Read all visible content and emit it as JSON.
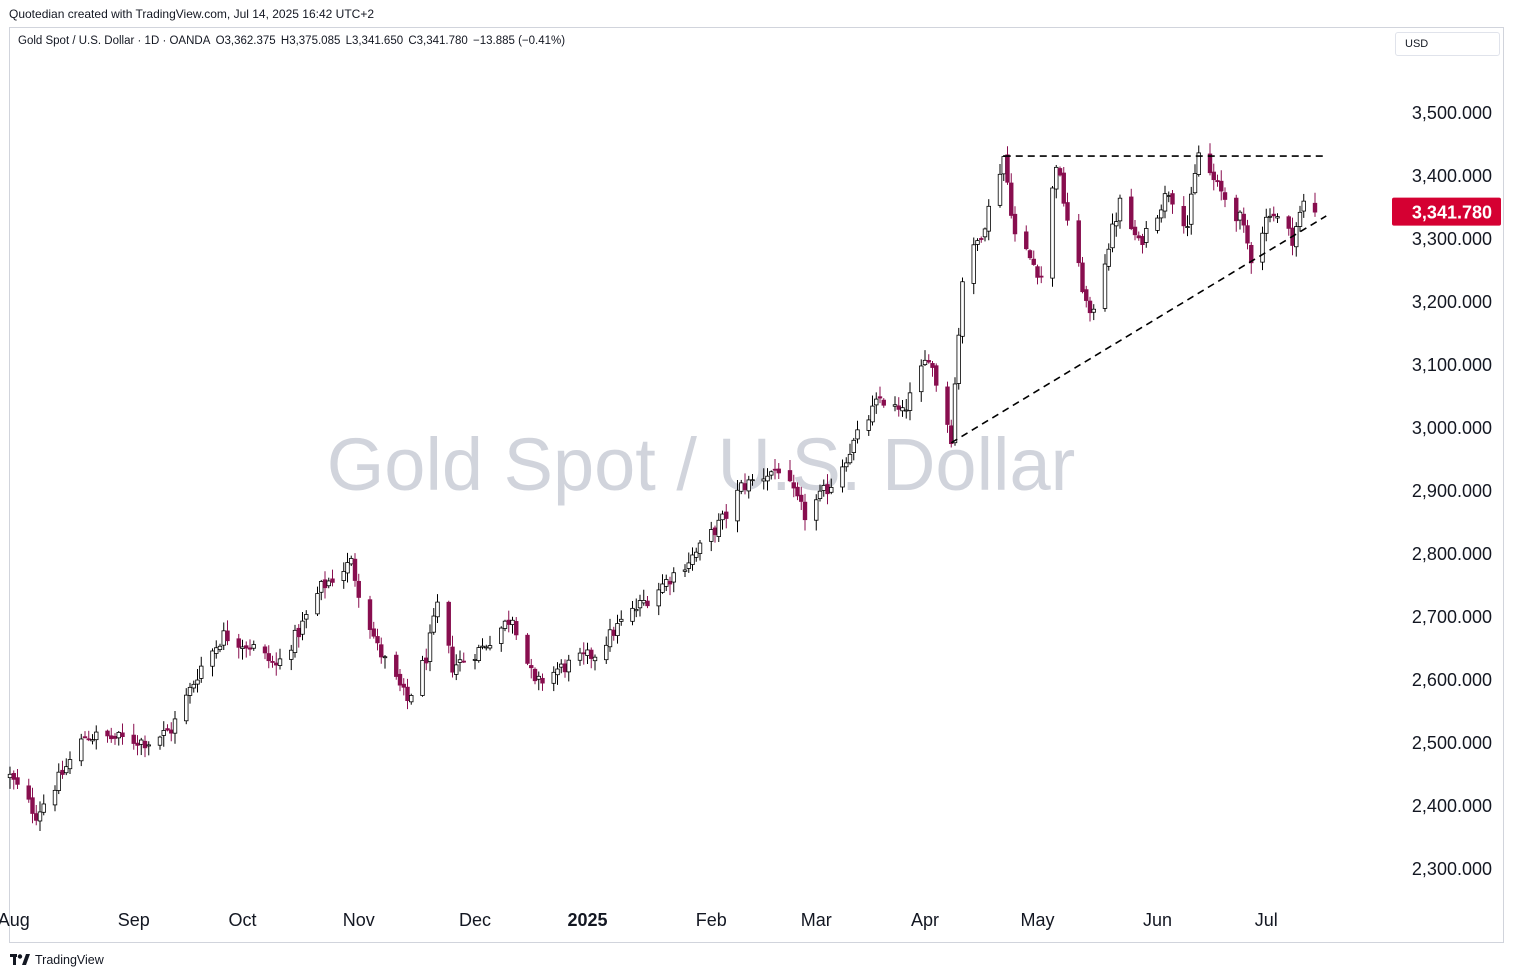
{
  "caption": "Quotedian created with TradingView.com, Jul 14, 2025 16:42 UTC+2",
  "legend": {
    "symbol": "Gold Spot / U.S. Dollar · 1D · OANDA",
    "open": "O3,362.375",
    "high": "H3,375.085",
    "low": "L3,341.650",
    "close": "C3,341.780",
    "change": "−13.885 (−0.41%)"
  },
  "currency": "USD",
  "watermark": "Gold Spot / U.S. Dollar",
  "footer": {
    "brand": "TradingView",
    "logo_icon": "tradingview-logo-icon"
  },
  "colors": {
    "up": "#ffffff",
    "up_border": "#000000",
    "down": "#880e4f",
    "last_price_badge": "#d50032",
    "watermark": "#d1d4dc"
  },
  "chart_data": {
    "type": "candlestick",
    "title": "Gold Spot / U.S. Dollar",
    "ylim": [
      2245,
      3535
    ],
    "y_ticks": [
      2300,
      2400,
      2500,
      2600,
      2700,
      2800,
      2900,
      3000,
      3100,
      3200,
      3300,
      3400,
      3500
    ],
    "y_tick_labels": [
      "2,300.000",
      "2,400.000",
      "2,500.000",
      "2,600.000",
      "2,700.000",
      "2,800.000",
      "2,900.000",
      "3,000.000",
      "3,100.000",
      "3,200.000",
      "3,300.000",
      "3,400.000",
      "3,500.000"
    ],
    "x_tick_labels": [
      "Aug",
      "Sep",
      "Oct",
      "Nov",
      "Dec",
      "2025",
      "Feb",
      "Mar",
      "Apr",
      "May",
      "Jun",
      "Jul"
    ],
    "x_tick_dates": [
      "2024-08-01",
      "2024-09-02",
      "2024-10-01",
      "2024-11-01",
      "2024-12-02",
      "2025-01-01",
      "2025-02-03",
      "2025-03-03",
      "2025-04-01",
      "2025-05-01",
      "2025-06-02",
      "2025-07-01"
    ],
    "last_price": 3341.78,
    "last_price_label": "3,341.780",
    "trendlines": [
      {
        "style": "dashed",
        "from": [
          "2025-04-22",
          3430
        ],
        "to": [
          "2025-07-17",
          3430
        ]
      },
      {
        "style": "dashed",
        "from": [
          "2025-04-08",
          2975
        ],
        "to": [
          "2025-07-17",
          3335
        ]
      }
    ],
    "close_path": [
      [
        "2024-07-31",
        2445
      ],
      [
        "2024-08-07",
        2385
      ],
      [
        "2024-08-14",
        2450
      ],
      [
        "2024-08-20",
        2510
      ],
      [
        "2024-08-30",
        2505
      ],
      [
        "2024-09-06",
        2500
      ],
      [
        "2024-09-12",
        2520
      ],
      [
        "2024-09-20",
        2620
      ],
      [
        "2024-09-26",
        2670
      ],
      [
        "2024-10-04",
        2650
      ],
      [
        "2024-10-10",
        2620
      ],
      [
        "2024-10-16",
        2675
      ],
      [
        "2024-10-22",
        2745
      ],
      [
        "2024-10-30",
        2785
      ],
      [
        "2024-11-01",
        2740
      ],
      [
        "2024-11-06",
        2650
      ],
      [
        "2024-11-14",
        2565
      ],
      [
        "2024-11-19",
        2635
      ],
      [
        "2024-11-22",
        2715
      ],
      [
        "2024-11-26",
        2620
      ],
      [
        "2024-12-04",
        2650
      ],
      [
        "2024-12-12",
        2700
      ],
      [
        "2024-12-18",
        2590
      ],
      [
        "2024-12-24",
        2615
      ],
      [
        "2025-01-03",
        2640
      ],
      [
        "2025-01-10",
        2690
      ],
      [
        "2025-01-21",
        2750
      ],
      [
        "2025-01-30",
        2800
      ],
      [
        "2025-02-07",
        2860
      ],
      [
        "2025-02-11",
        2905
      ],
      [
        "2025-02-21",
        2935
      ],
      [
        "2025-02-28",
        2860
      ],
      [
        "2025-03-07",
        2910
      ],
      [
        "2025-03-14",
        2985
      ],
      [
        "2025-03-20",
        3045
      ],
      [
        "2025-03-26",
        3020
      ],
      [
        "2025-04-02",
        3115
      ],
      [
        "2025-04-08",
        2985
      ],
      [
        "2025-04-11",
        3235
      ],
      [
        "2025-04-17",
        3325
      ],
      [
        "2025-04-22",
        3430
      ],
      [
        "2025-04-25",
        3305
      ],
      [
        "2025-05-02",
        3240
      ],
      [
        "2025-05-06",
        3420
      ],
      [
        "2025-05-09",
        3330
      ],
      [
        "2025-05-15",
        3170
      ],
      [
        "2025-05-20",
        3290
      ],
      [
        "2025-05-23",
        3355
      ],
      [
        "2025-05-28",
        3290
      ],
      [
        "2025-06-05",
        3375
      ],
      [
        "2025-06-10",
        3320
      ],
      [
        "2025-06-13",
        3435
      ],
      [
        "2025-06-18",
        3380
      ],
      [
        "2025-06-24",
        3330
      ],
      [
        "2025-06-27",
        3270
      ],
      [
        "2025-07-02",
        3345
      ],
      [
        "2025-07-08",
        3300
      ],
      [
        "2025-07-11",
        3355
      ],
      [
        "2025-07-14",
        3342
      ]
    ]
  }
}
